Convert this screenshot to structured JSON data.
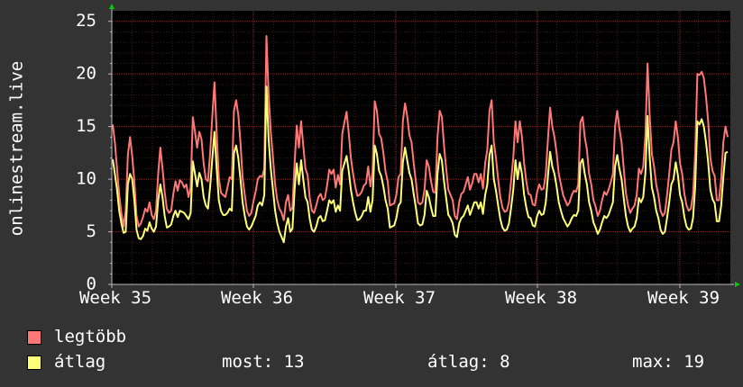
{
  "chart_data": {
    "type": "line",
    "ylabel": "onlinestream.live",
    "ylim": [
      0,
      26
    ],
    "y_ticks": [
      "0",
      "5",
      "10",
      "15",
      "20",
      "25"
    ],
    "x_ticks": [
      "Week 35",
      "Week 36",
      "Week 37",
      "Week 38",
      "Week 39"
    ],
    "grid": true,
    "colors": {
      "background": "#000000",
      "page": "#333333",
      "max_series": "#ff7777",
      "avg_series": "#ffff77",
      "grid": "#6a2a2a",
      "axis_arrow": "#00cc00"
    },
    "series": [
      {
        "name": "legtöbb",
        "color": "#ff7777",
        "values": [
          15.2,
          13.5,
          11.0,
          8.5,
          6.8,
          5.5,
          7.0,
          12.3,
          14.0,
          12.2,
          9.8,
          6.5,
          5.5,
          5.8,
          6.4,
          7.2,
          6.9,
          7.8,
          6.6,
          6.2,
          7.0,
          10.5,
          13.0,
          11.0,
          8.8,
          7.2,
          6.8,
          7.0,
          8.6,
          9.8,
          8.9,
          9.9,
          9.7,
          9.2,
          9.5,
          8.3,
          9.2,
          15.9,
          14.5,
          13.0,
          14.5,
          13.8,
          11.5,
          10.0,
          9.8,
          12.5,
          16.0,
          19.2,
          14.5,
          10.1,
          8.7,
          8.5,
          8.3,
          9.2,
          10.2,
          10.0,
          16.5,
          17.5,
          16.1,
          13.5,
          10.1,
          8.5,
          7.0,
          6.5,
          6.8,
          7.9,
          8.8,
          10.0,
          10.3,
          10.2,
          11.0,
          23.6,
          18.0,
          14.5,
          12.1,
          9.5,
          8.0,
          7.2,
          6.8,
          6.1,
          7.8,
          8.5,
          7.0,
          7.3,
          11.5,
          15.1,
          13.0,
          15.5,
          13.2,
          11.0,
          10.4,
          8.2,
          7.0,
          6.8,
          7.5,
          8.3,
          8.6,
          8.0,
          8.2,
          9.4,
          10.9,
          10.5,
          10.9,
          9.2,
          10.4,
          9.5,
          14.3,
          15.4,
          16.4,
          14.4,
          12.0,
          10.5,
          9.3,
          8.4,
          8.5,
          8.8,
          9.4,
          9.6,
          11.2,
          9.3,
          10.7,
          17.4,
          16.5,
          14.3,
          13.9,
          12.5,
          10.7,
          9.8,
          7.5,
          7.6,
          7.7,
          8.5,
          10.2,
          10.5,
          15.5,
          17.2,
          16.0,
          14.2,
          13.5,
          11.5,
          9.8,
          7.8,
          7.6,
          7.8,
          9.0,
          11.8,
          11.2,
          9.8,
          8.8,
          8.7,
          14.0,
          16.5,
          15.9,
          13.2,
          11.0,
          9.0,
          8.5,
          8.0,
          6.5,
          6.2,
          7.8,
          8.6,
          8.8,
          9.5,
          10.2,
          9.0,
          9.6,
          10.5,
          10.5,
          9.7,
          10.5,
          9.1,
          11.5,
          12.8,
          16.5,
          17.5,
          13.5,
          12.0,
          10.0,
          8.3,
          7.3,
          6.9,
          7.0,
          7.8,
          9.9,
          12.1,
          15.5,
          13.5,
          15.5,
          14.0,
          11.5,
          9.8,
          8.6,
          8.5,
          7.6,
          7.5,
          8.8,
          9.5,
          9.0,
          9.1,
          10.5,
          13.8,
          16.8,
          15.0,
          14.0,
          12.5,
          10.5,
          9.5,
          8.5,
          8.0,
          7.5,
          7.8,
          8.5,
          8.9,
          8.8,
          9.5,
          15.4,
          15.9,
          14.0,
          12.8,
          10.5,
          9.5,
          8.0,
          7.4,
          6.5,
          7.0,
          8.0,
          8.8,
          8.5,
          9.0,
          9.7,
          10.5,
          15.0,
          16.5,
          14.8,
          13.5,
          11.0,
          8.7,
          7.5,
          6.8,
          7.2,
          7.5,
          8.5,
          11.0,
          10.5,
          11.2,
          14.2,
          21.0,
          16.0,
          12.4,
          11.2,
          9.5,
          8.5,
          7.0,
          6.5,
          6.8,
          8.5,
          10.5,
          12.8,
          13.5,
          15.5,
          14.0,
          11.5,
          10.5,
          8.6,
          7.5,
          7.0,
          7.2,
          8.5,
          12.5,
          20.0,
          19.9,
          20.2,
          19.6,
          17.8,
          15.5,
          12.0,
          10.8,
          10.3,
          8.0,
          8.0,
          10.0,
          13.5,
          15.0,
          14.0
        ]
      },
      {
        "name": "átlag",
        "color": "#ffff77",
        "values": [
          11.9,
          10.5,
          9.0,
          7.0,
          5.8,
          4.9,
          5.0,
          9.5,
          10.5,
          10.0,
          8.0,
          5.2,
          4.4,
          4.3,
          4.6,
          5.3,
          5.1,
          5.9,
          5.3,
          5.0,
          5.5,
          8.0,
          9.5,
          8.3,
          6.5,
          5.4,
          5.5,
          5.7,
          6.5,
          7.0,
          6.4,
          7.0,
          6.9,
          6.8,
          6.5,
          6.2,
          6.8,
          11.7,
          10.5,
          9.3,
          10.6,
          10.0,
          8.3,
          7.5,
          7.2,
          9.3,
          12.0,
          14.5,
          11.0,
          8.0,
          7.0,
          6.6,
          6.6,
          6.8,
          7.2,
          7.0,
          12.5,
          13.2,
          12.0,
          10.0,
          7.8,
          6.5,
          5.5,
          5.2,
          5.5,
          6.0,
          6.5,
          7.5,
          7.8,
          7.5,
          8.5,
          18.8,
          13.8,
          11.0,
          9.0,
          7.0,
          5.8,
          5.0,
          4.5,
          4.0,
          5.5,
          6.3,
          5.0,
          5.3,
          9.0,
          11.5,
          9.5,
          11.8,
          10.0,
          8.3,
          7.8,
          6.2,
          5.2,
          5.0,
          5.5,
          6.3,
          6.5,
          6.0,
          6.1,
          7.0,
          8.0,
          7.7,
          8.0,
          6.9,
          7.5,
          7.0,
          10.8,
          11.5,
          12.2,
          10.8,
          9.0,
          7.8,
          6.8,
          6.1,
          6.2,
          6.5,
          7.0,
          7.0,
          8.3,
          6.9,
          8.0,
          13.2,
          12.4,
          10.8,
          10.3,
          9.3,
          8.0,
          7.2,
          5.4,
          5.5,
          5.6,
          6.3,
          7.5,
          7.8,
          11.6,
          13.0,
          11.8,
          10.6,
          10.0,
          8.6,
          7.3,
          5.8,
          5.6,
          5.7,
          6.6,
          8.9,
          8.3,
          7.3,
          6.5,
          6.5,
          10.5,
          12.4,
          11.8,
          9.8,
          8.2,
          6.6,
          6.3,
          5.8,
          4.7,
          4.5,
          5.8,
          6.3,
          6.5,
          7.0,
          7.5,
          6.6,
          7.2,
          7.8,
          7.8,
          7.2,
          7.8,
          6.7,
          8.5,
          9.5,
          12.3,
          13.2,
          10.0,
          8.9,
          7.5,
          6.2,
          5.4,
          5.1,
          5.2,
          5.8,
          7.3,
          9.0,
          11.8,
          10.0,
          11.6,
          10.5,
          8.5,
          7.3,
          6.4,
          6.3,
          5.6,
          5.5,
          6.5,
          7.0,
          6.6,
          6.7,
          7.8,
          10.3,
          12.6,
          11.2,
          10.5,
          9.3,
          7.8,
          7.0,
          6.3,
          5.9,
          5.5,
          5.8,
          6.3,
          6.6,
          6.5,
          7.0,
          11.5,
          11.9,
          10.5,
          9.5,
          7.8,
          7.0,
          5.9,
          5.4,
          4.8,
          5.2,
          5.9,
          6.5,
          6.3,
          6.6,
          7.2,
          7.8,
          11.2,
          12.3,
          11.0,
          10.0,
          8.2,
          6.5,
          5.5,
          5.0,
          5.3,
          5.5,
          6.3,
          8.2,
          7.8,
          8.3,
          10.6,
          16.0,
          12.0,
          9.2,
          8.3,
          7.0,
          6.3,
          5.2,
          4.8,
          5.0,
          6.3,
          7.8,
          9.5,
          10.0,
          11.6,
          10.4,
          8.5,
          7.8,
          6.4,
          5.5,
          5.2,
          5.3,
          6.3,
          9.3,
          15.5,
          15.2,
          15.7,
          15.0,
          13.5,
          11.6,
          9.0,
          8.1,
          7.7,
          6.0,
          6.0,
          7.5,
          10.2,
          12.5,
          12.6
        ]
      }
    ]
  },
  "legend": [
    {
      "label": "legtöbb",
      "color": "#ff7777"
    },
    {
      "label": "átlag",
      "color": "#ffff77"
    }
  ],
  "stats": {
    "now": "most: 13",
    "avg": "átlag: 8",
    "max": "max: 19"
  }
}
